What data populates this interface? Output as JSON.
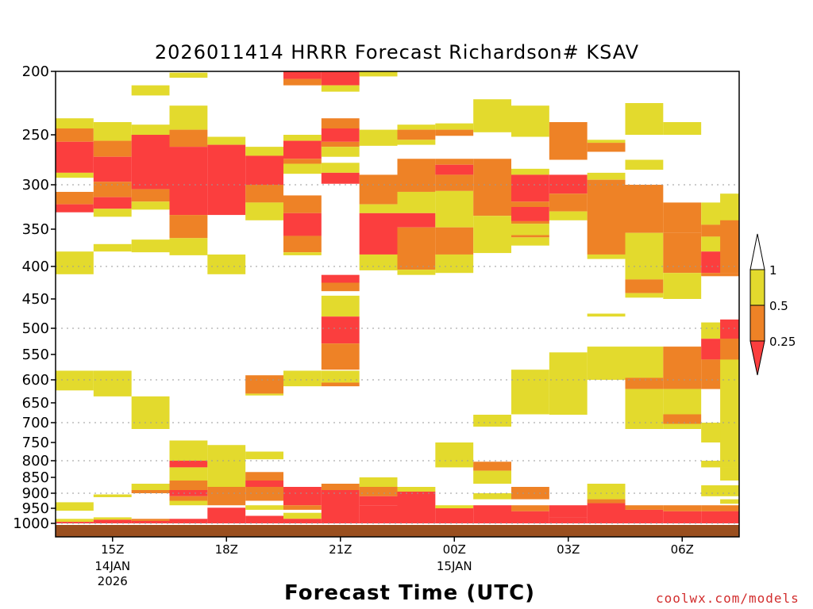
{
  "chart_data": {
    "type": "heatmap",
    "title": "2026011414 HRRR Forecast Richardson# KSAV",
    "xlabel": "Forecast Time (UTC)",
    "ylabel": "",
    "credit": "coolwx.com/models",
    "y_ticks": [
      200,
      250,
      300,
      350,
      400,
      450,
      500,
      550,
      600,
      650,
      700,
      750,
      800,
      850,
      900,
      950,
      1000
    ],
    "gridlines_dotted": [
      300,
      400,
      500,
      600,
      700,
      800,
      900,
      1000
    ],
    "ylim": [
      1020,
      200
    ],
    "xlim_hours_from_start": [
      -0.5,
      17.5
    ],
    "x_ticks": [
      {
        "label": "15Z",
        "sub": [
          "14JAN",
          "2026"
        ],
        "hour": 1
      },
      {
        "label": "18Z",
        "sub": [],
        "hour": 4
      },
      {
        "label": "21Z",
        "sub": [],
        "hour": 7
      },
      {
        "label": "00Z",
        "sub": [
          "15JAN"
        ],
        "hour": 10
      },
      {
        "label": "03Z",
        "sub": [],
        "hour": 13
      },
      {
        "label": "06Z",
        "sub": [],
        "hour": 16
      }
    ],
    "legend": {
      "placement": "right",
      "labels": [
        "1",
        "0.5",
        "0.25"
      ],
      "bins": [
        {
          "range": "0.5-1",
          "color": "#e3da2d"
        },
        {
          "range": "0.25-0.5",
          "color": "#ee8226"
        },
        {
          "range": "<0.25",
          "color": "#fb3e3e"
        }
      ]
    },
    "colors": {
      "1": "#e3da2d",
      "2": "#ee8226",
      "3": "#fb3e3e",
      "ground": "#9a4f1f"
    },
    "columns": [
      {
        "hour": 0,
        "cells": [
          [
            237,
            245,
            1
          ],
          [
            245,
            257,
            2
          ],
          [
            257,
            288,
            3
          ],
          [
            288,
            293,
            1
          ],
          [
            308,
            322,
            2
          ],
          [
            322,
            331,
            3
          ],
          [
            380,
            412,
            1
          ],
          [
            582,
            623,
            1
          ],
          [
            930,
            958,
            1
          ],
          [
            985,
            995,
            1
          ],
          [
            995,
            1000,
            3
          ]
        ]
      },
      {
        "hour": 1,
        "cells": [
          [
            240,
            256,
            1
          ],
          [
            256,
            272,
            2
          ],
          [
            272,
            297,
            3
          ],
          [
            297,
            314,
            2
          ],
          [
            314,
            327,
            3
          ],
          [
            327,
            336,
            1
          ],
          [
            370,
            380,
            1
          ],
          [
            582,
            636,
            1
          ],
          [
            904,
            913,
            1
          ],
          [
            913,
            975,
            0
          ],
          [
            980,
            988,
            1
          ],
          [
            988,
            1000,
            3
          ]
        ]
      },
      {
        "hour": 2,
        "cells": [
          [
            211,
            219,
            1
          ],
          [
            242,
            250,
            1
          ],
          [
            250,
            305,
            3
          ],
          [
            305,
            319,
            2
          ],
          [
            319,
            328,
            1
          ],
          [
            364,
            381,
            1
          ],
          [
            636,
            716,
            1
          ],
          [
            870,
            890,
            1
          ],
          [
            890,
            900,
            2
          ],
          [
            985,
            992,
            2
          ],
          [
            992,
            1000,
            3
          ]
        ]
      },
      {
        "hour": 3,
        "cells": [
          [
            201,
            205,
            1
          ],
          [
            227,
            246,
            1
          ],
          [
            246,
            262,
            2
          ],
          [
            262,
            334,
            3
          ],
          [
            334,
            362,
            2
          ],
          [
            362,
            385,
            1
          ],
          [
            745,
            800,
            1
          ],
          [
            800,
            820,
            3
          ],
          [
            820,
            860,
            1
          ],
          [
            860,
            890,
            2
          ],
          [
            890,
            910,
            3
          ],
          [
            910,
            925,
            2
          ],
          [
            925,
            940,
            1
          ],
          [
            985,
            1000,
            3
          ]
        ]
      },
      {
        "hour": 4,
        "cells": [
          [
            252,
            260,
            1
          ],
          [
            260,
            334,
            3
          ],
          [
            384,
            412,
            1
          ],
          [
            757,
            880,
            1
          ],
          [
            880,
            940,
            2
          ],
          [
            948,
            1000,
            3
          ]
        ]
      },
      {
        "hour": 5,
        "cells": [
          [
            262,
            271,
            1
          ],
          [
            271,
            300,
            3
          ],
          [
            300,
            320,
            2
          ],
          [
            320,
            340,
            1
          ],
          [
            591,
            630,
            2
          ],
          [
            630,
            634,
            1
          ],
          [
            775,
            796,
            1
          ],
          [
            834,
            860,
            2
          ],
          [
            860,
            880,
            3
          ],
          [
            880,
            925,
            2
          ],
          [
            925,
            940,
            0
          ],
          [
            940,
            955,
            1
          ],
          [
            975,
            1000,
            3
          ]
        ]
      },
      {
        "hour": 6,
        "cells": [
          [
            200,
            206,
            3
          ],
          [
            206,
            211,
            2
          ],
          [
            250,
            256,
            1
          ],
          [
            256,
            274,
            3
          ],
          [
            274,
            279,
            2
          ],
          [
            279,
            289,
            1
          ],
          [
            312,
            332,
            2
          ],
          [
            332,
            359,
            3
          ],
          [
            359,
            381,
            2
          ],
          [
            381,
            385,
            1
          ],
          [
            582,
            614,
            1
          ],
          [
            880,
            940,
            3
          ],
          [
            940,
            955,
            2
          ],
          [
            965,
            985,
            1
          ],
          [
            985,
            1000,
            3
          ]
        ]
      },
      {
        "hour": 7,
        "cells": [
          [
            200,
            211,
            3
          ],
          [
            211,
            216,
            1
          ],
          [
            237,
            245,
            2
          ],
          [
            245,
            257,
            3
          ],
          [
            257,
            262,
            2
          ],
          [
            262,
            272,
            1
          ],
          [
            278,
            288,
            1
          ],
          [
            288,
            299,
            3
          ],
          [
            413,
            425,
            3
          ],
          [
            425,
            438,
            2
          ],
          [
            445,
            480,
            1
          ],
          [
            480,
            529,
            3
          ],
          [
            529,
            580,
            2
          ],
          [
            582,
            606,
            1
          ],
          [
            606,
            614,
            2
          ],
          [
            870,
            890,
            2
          ],
          [
            890,
            1000,
            3
          ]
        ]
      },
      {
        "hour": 8,
        "cells": [
          [
            200,
            204,
            1
          ],
          [
            246,
            261,
            1
          ],
          [
            290,
            322,
            2
          ],
          [
            322,
            332,
            1
          ],
          [
            332,
            384,
            3
          ],
          [
            384,
            406,
            1
          ],
          [
            850,
            880,
            1
          ],
          [
            880,
            910,
            2
          ],
          [
            910,
            940,
            3
          ],
          [
            940,
            1000,
            3
          ]
        ]
      },
      {
        "hour": 9,
        "cells": [
          [
            242,
            246,
            1
          ],
          [
            246,
            255,
            2
          ],
          [
            255,
            260,
            1
          ],
          [
            274,
            308,
            2
          ],
          [
            308,
            332,
            1
          ],
          [
            332,
            348,
            3
          ],
          [
            348,
            405,
            2
          ],
          [
            405,
            413,
            1
          ],
          [
            880,
            895,
            1
          ],
          [
            895,
            1000,
            3
          ]
        ]
      },
      {
        "hour": 10,
        "cells": [
          [
            241,
            246,
            1
          ],
          [
            246,
            251,
            2
          ],
          [
            274,
            280,
            2
          ],
          [
            280,
            290,
            3
          ],
          [
            290,
            307,
            2
          ],
          [
            307,
            348,
            1
          ],
          [
            348,
            384,
            2
          ],
          [
            384,
            410,
            1
          ],
          [
            750,
            820,
            1
          ],
          [
            940,
            950,
            1
          ],
          [
            950,
            1000,
            3
          ]
        ]
      },
      {
        "hour": 11,
        "cells": [
          [
            222,
            248,
            1
          ],
          [
            274,
            335,
            2
          ],
          [
            335,
            382,
            1
          ],
          [
            680,
            710,
            1
          ],
          [
            803,
            830,
            2
          ],
          [
            830,
            870,
            1
          ],
          [
            900,
            920,
            1
          ],
          [
            940,
            1000,
            3
          ]
        ]
      },
      {
        "hour": 12,
        "cells": [
          [
            227,
            252,
            1
          ],
          [
            284,
            290,
            1
          ],
          [
            290,
            319,
            3
          ],
          [
            319,
            325,
            2
          ],
          [
            325,
            341,
            3
          ],
          [
            341,
            344,
            2
          ],
          [
            344,
            358,
            1
          ],
          [
            358,
            361,
            2
          ],
          [
            361,
            372,
            1
          ],
          [
            580,
            679,
            1
          ],
          [
            880,
            920,
            2
          ],
          [
            920,
            940,
            0
          ],
          [
            940,
            960,
            2
          ],
          [
            960,
            1000,
            3
          ]
        ]
      },
      {
        "hour": 13,
        "cells": [
          [
            240,
            275,
            2
          ],
          [
            290,
            310,
            3
          ],
          [
            310,
            330,
            2
          ],
          [
            330,
            340,
            1
          ],
          [
            546,
            680,
            1
          ],
          [
            940,
            980,
            3
          ],
          [
            980,
            1000,
            3
          ]
        ]
      },
      {
        "hour": 14,
        "cells": [
          [
            255,
            258,
            1
          ],
          [
            258,
            267,
            2
          ],
          [
            288,
            295,
            1
          ],
          [
            295,
            384,
            2
          ],
          [
            384,
            390,
            1
          ],
          [
            475,
            480,
            1
          ],
          [
            535,
            600,
            1
          ],
          [
            870,
            920,
            1
          ],
          [
            920,
            933,
            2
          ],
          [
            933,
            1000,
            3
          ]
        ]
      },
      {
        "hour": 15,
        "cells": [
          [
            225,
            250,
            1
          ],
          [
            275,
            285,
            1
          ],
          [
            300,
            355,
            2
          ],
          [
            355,
            420,
            1
          ],
          [
            420,
            441,
            2
          ],
          [
            441,
            448,
            1
          ],
          [
            535,
            596,
            1
          ],
          [
            596,
            620,
            2
          ],
          [
            620,
            716,
            1
          ],
          [
            940,
            955,
            2
          ],
          [
            955,
            1000,
            3
          ]
        ]
      },
      {
        "hour": 16,
        "cells": [
          [
            240,
            250,
            1
          ],
          [
            320,
            355,
            2
          ],
          [
            355,
            410,
            2
          ],
          [
            410,
            450,
            1
          ],
          [
            535,
            620,
            2
          ],
          [
            620,
            679,
            1
          ],
          [
            679,
            703,
            2
          ],
          [
            703,
            716,
            1
          ],
          [
            940,
            960,
            2
          ],
          [
            960,
            1000,
            3
          ]
        ]
      },
      {
        "hour": 17,
        "cells": [
          [
            320,
            345,
            1
          ],
          [
            345,
            360,
            2
          ],
          [
            360,
            380,
            1
          ],
          [
            380,
            410,
            3
          ],
          [
            410,
            415,
            2
          ],
          [
            490,
            520,
            1
          ],
          [
            520,
            560,
            3
          ],
          [
            560,
            620,
            2
          ],
          [
            700,
            750,
            1
          ],
          [
            800,
            820,
            1
          ],
          [
            875,
            910,
            1
          ],
          [
            940,
            960,
            2
          ],
          [
            960,
            1000,
            3
          ]
        ]
      },
      {
        "hour": 17.5,
        "cells": [
          [
            310,
            340,
            1
          ],
          [
            340,
            410,
            2
          ],
          [
            485,
            520,
            3
          ],
          [
            520,
            560,
            2
          ],
          [
            560,
            820,
            1
          ],
          [
            820,
            860,
            1
          ],
          [
            920,
            935,
            1
          ],
          [
            960,
            1000,
            3
          ]
        ]
      }
    ]
  }
}
